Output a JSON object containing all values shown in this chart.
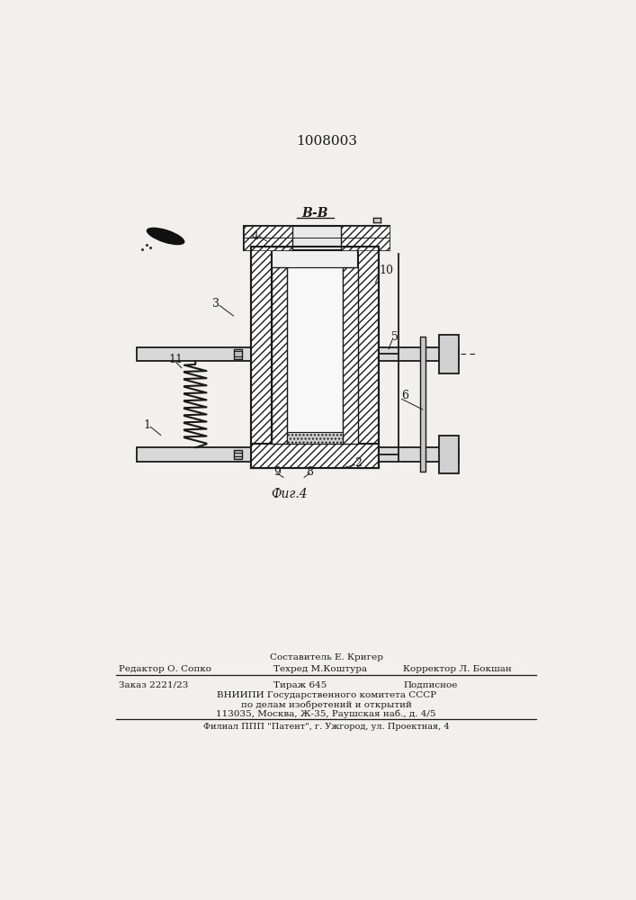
{
  "patent_number": "1008003",
  "section_label": "B-B",
  "fig_label": "Фиг.4",
  "bg_color": "#f2f0ed",
  "line_color": "#1a1a1a",
  "footer_line1": "Составитель Е. Кригер",
  "footer_line2_left": "Редактор О. Сопко",
  "footer_line2_mid": "Техред М.Коштура",
  "footer_line2_right": "Корректор Л. Бокшан",
  "footer_line3_left": "Заказ 2221/23",
  "footer_line3_mid": "Тираж 645",
  "footer_line3_right": "Подписное",
  "footer_line4": "ВНИИПИ Государственного комитета СССР",
  "footer_line5": "по делам изобретений и открытий",
  "footer_line6": "113035, Москва, Ж-35, Раушская наб., д. 4/5",
  "footer_line7": "Филиал ППП \"Патент\", г. Ужгород, ул. Проектная, 4"
}
